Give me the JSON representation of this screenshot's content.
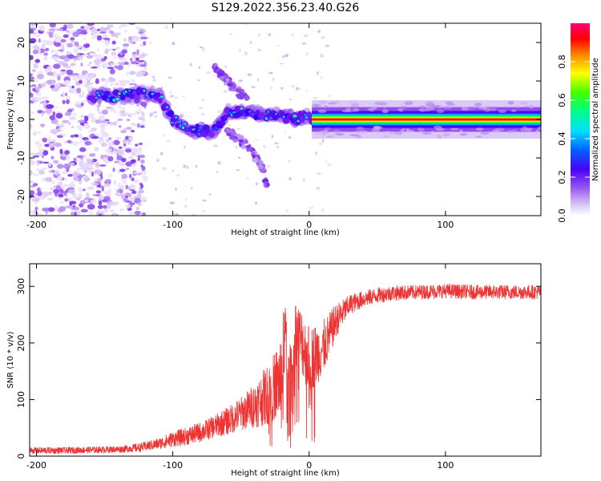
{
  "title": "S129.2022.356.23.40.G26",
  "chart_data": [
    {
      "type": "heatmap",
      "xlabel": "Height of straight line (km)",
      "ylabel": "Frequency (Hz)",
      "xlim": [
        -205,
        170
      ],
      "ylim": [
        -25,
        25
      ],
      "xticks": [
        -200,
        -100,
        0,
        100
      ],
      "yticks": [
        -20,
        -10,
        0,
        10,
        20
      ],
      "colorbar": {
        "label": "Normalized spectral amplitude",
        "range": [
          0.0,
          1.0
        ],
        "ticks": [
          0.0,
          0.2,
          0.4,
          0.6,
          0.8
        ],
        "colormap": [
          "#ffffff",
          "#d6c3f5",
          "#9a5cf0",
          "#6a10ee",
          "#2a00ff",
          "#00b4ff",
          "#00ffcc",
          "#44ff00",
          "#ffff00",
          "#ff7a00",
          "#ff0000",
          "#ff0077"
        ]
      },
      "features": [
        {
          "name": "noise field",
          "x_range": [
            -205,
            -120
          ],
          "y_range": [
            -25,
            25
          ],
          "amplitude": 0.2
        },
        {
          "name": "signal track",
          "points": [
            [
              -160,
              6
            ],
            [
              -140,
              6
            ],
            [
              -120,
              7
            ],
            [
              -110,
              6
            ],
            [
              -100,
              0
            ],
            [
              -85,
              -3
            ],
            [
              -70,
              -3
            ],
            [
              -60,
              2
            ],
            [
              -45,
              2
            ],
            [
              -30,
              1
            ],
            [
              -20,
              1
            ],
            [
              -10,
              0
            ],
            [
              0,
              1
            ],
            [
              5,
              0
            ],
            [
              170,
              0
            ]
          ]
        },
        {
          "name": "lower branch",
          "points": [
            [
              -60,
              -3
            ],
            [
              -45,
              -7
            ],
            [
              -35,
              -12
            ],
            [
              -30,
              -18
            ]
          ]
        },
        {
          "name": "upper branch",
          "points": [
            [
              -70,
              14
            ],
            [
              -55,
              8
            ],
            [
              -45,
              5
            ]
          ]
        }
      ]
    },
    {
      "type": "line",
      "xlabel": "Height of straight line (km)",
      "ylabel": "SNR (10 * v/v)",
      "xlim": [
        -205,
        170
      ],
      "ylim": [
        0,
        340
      ],
      "xticks": [
        -200,
        -100,
        0,
        100
      ],
      "yticks": [
        0,
        100,
        200,
        300
      ],
      "color": "#ee3333",
      "series": [
        {
          "name": "SNR",
          "x": [
            -205,
            -180,
            -160,
            -140,
            -125,
            -110,
            -100,
            -90,
            -80,
            -70,
            -60,
            -50,
            -40,
            -30,
            -25,
            -20,
            -17,
            -15,
            -12,
            -10,
            -5,
            0,
            5,
            10,
            20,
            30,
            40,
            50,
            60,
            80,
            100,
            120,
            140,
            170
          ],
          "values": [
            10,
            10,
            11,
            12,
            15,
            22,
            30,
            35,
            42,
            52,
            62,
            75,
            90,
            110,
            125,
            140,
            150,
            110,
            160,
            220,
            200,
            170,
            180,
            190,
            240,
            268,
            278,
            284,
            288,
            290,
            292,
            290,
            290,
            290
          ],
          "noise": [
            6,
            6,
            6,
            6,
            8,
            10,
            14,
            16,
            18,
            20,
            25,
            30,
            40,
            55,
            60,
            80,
            180,
            80,
            60,
            60,
            60,
            60,
            55,
            50,
            30,
            18,
            15,
            14,
            14,
            13,
            13,
            13,
            13,
            13
          ]
        }
      ]
    }
  ]
}
